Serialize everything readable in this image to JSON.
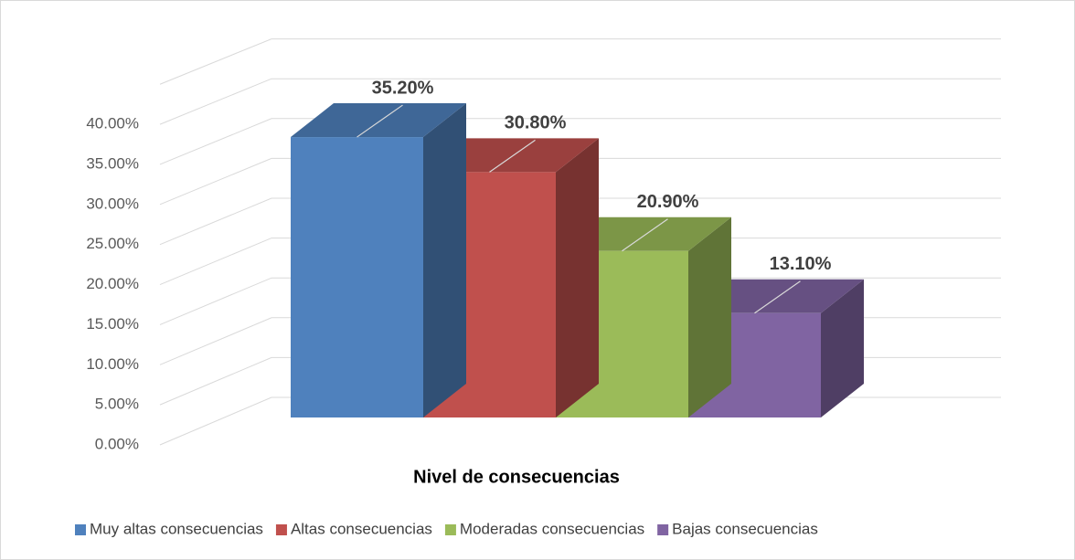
{
  "chart_data": {
    "type": "bar3d",
    "x_label": "Nivel de consecuencias",
    "series": [
      {
        "name": "Muy altas consecuencias",
        "color": "#4f81bd",
        "values": [
          35.2
        ],
        "value_labels": [
          "35.20%"
        ]
      },
      {
        "name": "Altas consecuencias",
        "color": "#c0504d",
        "values": [
          30.8
        ],
        "value_labels": [
          "30.80%"
        ]
      },
      {
        "name": "Moderadas consecuencias",
        "color": "#9bbb59",
        "values": [
          20.9
        ],
        "value_labels": [
          "20.90%"
        ]
      },
      {
        "name": "Bajas consecuencias",
        "color": "#8064a2",
        "values": [
          13.1
        ],
        "value_labels": [
          "13.10%"
        ]
      }
    ],
    "ylim": [
      0,
      45
    ],
    "yticks": [
      {
        "value": 0,
        "label": "0.00%"
      },
      {
        "value": 5,
        "label": "5.00%"
      },
      {
        "value": 10,
        "label": "10.00%"
      },
      {
        "value": 15,
        "label": "15.00%"
      },
      {
        "value": 20,
        "label": "20.00%"
      },
      {
        "value": 25,
        "label": "25.00%"
      },
      {
        "value": 30,
        "label": "30.00%"
      },
      {
        "value": 35,
        "label": "35.00%"
      },
      {
        "value": 40,
        "label": "40.00%"
      }
    ],
    "grid": true,
    "legend": "bottom"
  }
}
